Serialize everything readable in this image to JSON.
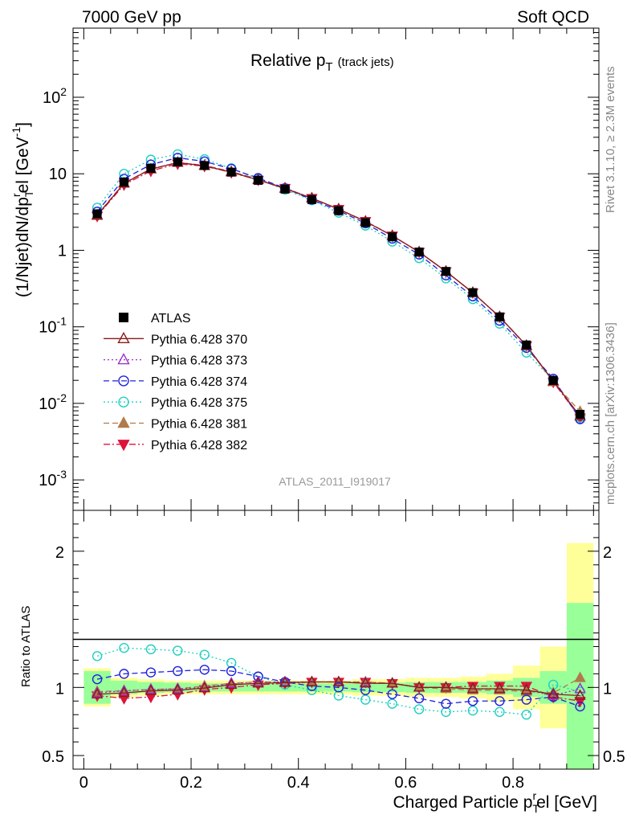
{
  "header": {
    "left": "7000 GeV pp",
    "right": "Soft QCD"
  },
  "side_text": {
    "top": "Rivet 3.1.10, ≥ 2.3M events",
    "bottom": "mcplots.cern.ch [arXiv:1306.3436]"
  },
  "colors": {
    "ATLAS": "#000000",
    "p370": "#8b1a1a",
    "p373": "#9932cc",
    "p374": "#2020dd",
    "p375": "#20d0c0",
    "p381": "#b07a4a",
    "p382": "#dc143c",
    "band_yellow": "#ffff99",
    "band_green": "#99ff99"
  },
  "chart_data": [
    {
      "type": "line",
      "title": "Relative p",
      "title_sub": "T",
      "title_note": "(track jets)",
      "ylabel": "(1/Njet)dN/dp",
      "ylabel_sub": "T",
      "ylabel_sup": "r",
      "ylabel_tail": "el [GeV",
      "ylabel_tail_sup": "-1",
      "ylabel_close": "]",
      "yscale": "log",
      "ylim": [
        0.0004,
        800
      ],
      "xlim": [
        -0.02,
        0.96
      ],
      "yticks": [
        {
          "v": 0.001,
          "base": "10",
          "exp": "-3"
        },
        {
          "v": 0.01,
          "base": "10",
          "exp": "-2"
        },
        {
          "v": 0.1,
          "base": "10",
          "exp": "-1"
        },
        {
          "v": 1,
          "base": "1",
          "exp": ""
        },
        {
          "v": 10,
          "base": "10",
          "exp": ""
        },
        {
          "v": 100,
          "base": "10",
          "exp": "2"
        }
      ],
      "watermark": "ATLAS_2011_I919017",
      "x": [
        0.025,
        0.075,
        0.125,
        0.175,
        0.225,
        0.275,
        0.325,
        0.375,
        0.425,
        0.475,
        0.525,
        0.575,
        0.625,
        0.675,
        0.725,
        0.775,
        0.825,
        0.875,
        0.925
      ],
      "series": [
        {
          "name": "ATLAS",
          "key": "ATLAS",
          "values": [
            3.0,
            7.8,
            11.8,
            14.3,
            12.8,
            10.5,
            8.2,
            6.3,
            4.6,
            3.3,
            2.3,
            1.5,
            0.95,
            0.53,
            0.28,
            0.135,
            0.058,
            0.02,
            0.0072
          ]
        },
        {
          "name": "Pythia 6.428 370",
          "key": "p370",
          "values": [
            2.85,
            7.5,
            11.5,
            14.0,
            12.7,
            10.5,
            8.3,
            6.4,
            4.8,
            3.45,
            2.38,
            1.55,
            0.95,
            0.53,
            0.28,
            0.135,
            0.057,
            0.0195,
            0.0068
          ]
        },
        {
          "name": "Pythia 6.428 373",
          "key": "p373",
          "values": [
            2.85,
            7.5,
            11.5,
            14.1,
            12.8,
            10.6,
            8.4,
            6.5,
            4.8,
            3.45,
            2.38,
            1.55,
            0.95,
            0.53,
            0.28,
            0.135,
            0.057,
            0.0195,
            0.0068
          ]
        },
        {
          "name": "Pythia 6.428 374",
          "key": "p374",
          "values": [
            3.2,
            8.6,
            13.2,
            16.2,
            14.5,
            11.6,
            8.8,
            6.5,
            4.6,
            3.3,
            2.25,
            1.42,
            0.88,
            0.47,
            0.25,
            0.12,
            0.053,
            0.021,
            0.0062
          ]
        },
        {
          "name": "Pythia 6.428 375",
          "key": "p375",
          "values": [
            3.6,
            10.0,
            15.3,
            18.0,
            15.5,
            11.8,
            8.5,
            6.2,
            4.5,
            3.1,
            2.1,
            1.3,
            0.79,
            0.43,
            0.23,
            0.11,
            0.046,
            0.02,
            0.0065
          ]
        },
        {
          "name": "Pythia 6.428 381",
          "key": "p381",
          "values": [
            2.9,
            7.6,
            11.6,
            14.0,
            12.9,
            10.7,
            8.5,
            6.5,
            4.8,
            3.45,
            2.4,
            1.55,
            0.95,
            0.53,
            0.28,
            0.135,
            0.056,
            0.019,
            0.0078
          ]
        },
        {
          "name": "Pythia 6.428 382",
          "key": "p382",
          "values": [
            2.8,
            7.2,
            10.9,
            13.5,
            12.6,
            10.4,
            8.3,
            6.5,
            4.8,
            3.45,
            2.4,
            1.55,
            0.95,
            0.53,
            0.28,
            0.135,
            0.057,
            0.019,
            0.0065
          ]
        }
      ]
    },
    {
      "type": "line",
      "ylabel": "Ratio to ATLAS",
      "xlabel": "Charged Particle p",
      "xlabel_sub": "T",
      "xlabel_sup": "r",
      "xlabel_tail": "el [GeV]",
      "ylim": [
        0.4,
        2.3
      ],
      "xlim": [
        -0.02,
        0.96
      ],
      "yticks": [
        {
          "v": 0.5,
          "label": "0.5"
        },
        {
          "v": 1,
          "label": "1"
        },
        {
          "v": 2,
          "label": "2"
        }
      ],
      "xticks": [
        {
          "v": 0,
          "label": "0"
        },
        {
          "v": 0.2,
          "label": "0.2"
        },
        {
          "v": 0.4,
          "label": "0.4"
        },
        {
          "v": 0.6,
          "label": "0.6"
        },
        {
          "v": 0.8,
          "label": "0.8"
        }
      ],
      "bands": {
        "edges": [
          0.0,
          0.05,
          0.1,
          0.15,
          0.2,
          0.25,
          0.3,
          0.35,
          0.4,
          0.45,
          0.5,
          0.55,
          0.6,
          0.65,
          0.7,
          0.75,
          0.8,
          0.85,
          0.9,
          0.95
        ],
        "green": [
          0.12,
          0.05,
          0.04,
          0.035,
          0.03,
          0.03,
          0.03,
          0.03,
          0.03,
          0.03,
          0.035,
          0.035,
          0.04,
          0.04,
          0.04,
          0.05,
          0.07,
          0.12,
          0.62
        ],
        "yellow": [
          0.14,
          0.07,
          0.06,
          0.05,
          0.05,
          0.05,
          0.05,
          0.05,
          0.05,
          0.05,
          0.06,
          0.06,
          0.07,
          0.07,
          0.08,
          0.1,
          0.16,
          0.3,
          1.06
        ]
      },
      "series": [
        {
          "key": "p370",
          "values": [
            0.95,
            0.96,
            0.975,
            0.98,
            0.995,
            1.02,
            1.03,
            1.035,
            1.04,
            1.04,
            1.03,
            1.03,
            1.0,
            1.0,
            0.99,
            0.99,
            0.98,
            0.95,
            0.94
          ]
        },
        {
          "key": "p373",
          "values": [
            0.96,
            0.975,
            0.985,
            0.99,
            1.0,
            1.03,
            1.04,
            1.04,
            1.04,
            1.04,
            1.035,
            1.03,
            1.0,
            1.0,
            0.99,
            0.99,
            0.98,
            0.94,
            0.99
          ]
        },
        {
          "key": "p374",
          "values": [
            1.06,
            1.1,
            1.11,
            1.12,
            1.13,
            1.12,
            1.08,
            1.04,
            1.01,
            1.0,
            0.98,
            0.95,
            0.92,
            0.88,
            0.9,
            0.9,
            0.91,
            0.93,
            0.86
          ]
        },
        {
          "key": "p375",
          "values": [
            1.23,
            1.29,
            1.28,
            1.27,
            1.24,
            1.18,
            1.08,
            1.02,
            0.98,
            0.94,
            0.91,
            0.88,
            0.84,
            0.82,
            0.83,
            0.82,
            0.8,
            1.02,
            0.97
          ]
        },
        {
          "key": "p381",
          "values": [
            0.97,
            0.975,
            0.985,
            0.99,
            1.01,
            1.03,
            1.04,
            1.04,
            1.04,
            1.04,
            1.04,
            1.03,
            1.0,
            0.99,
            0.98,
            0.98,
            0.97,
            0.96,
            1.07
          ]
        },
        {
          "key": "p382",
          "values": [
            0.94,
            0.92,
            0.93,
            0.95,
            0.985,
            1.0,
            1.02,
            1.03,
            1.04,
            1.04,
            1.04,
            1.03,
            1.0,
            1.0,
            1.01,
            1.01,
            1.01,
            0.93,
            0.9
          ]
        }
      ]
    }
  ]
}
